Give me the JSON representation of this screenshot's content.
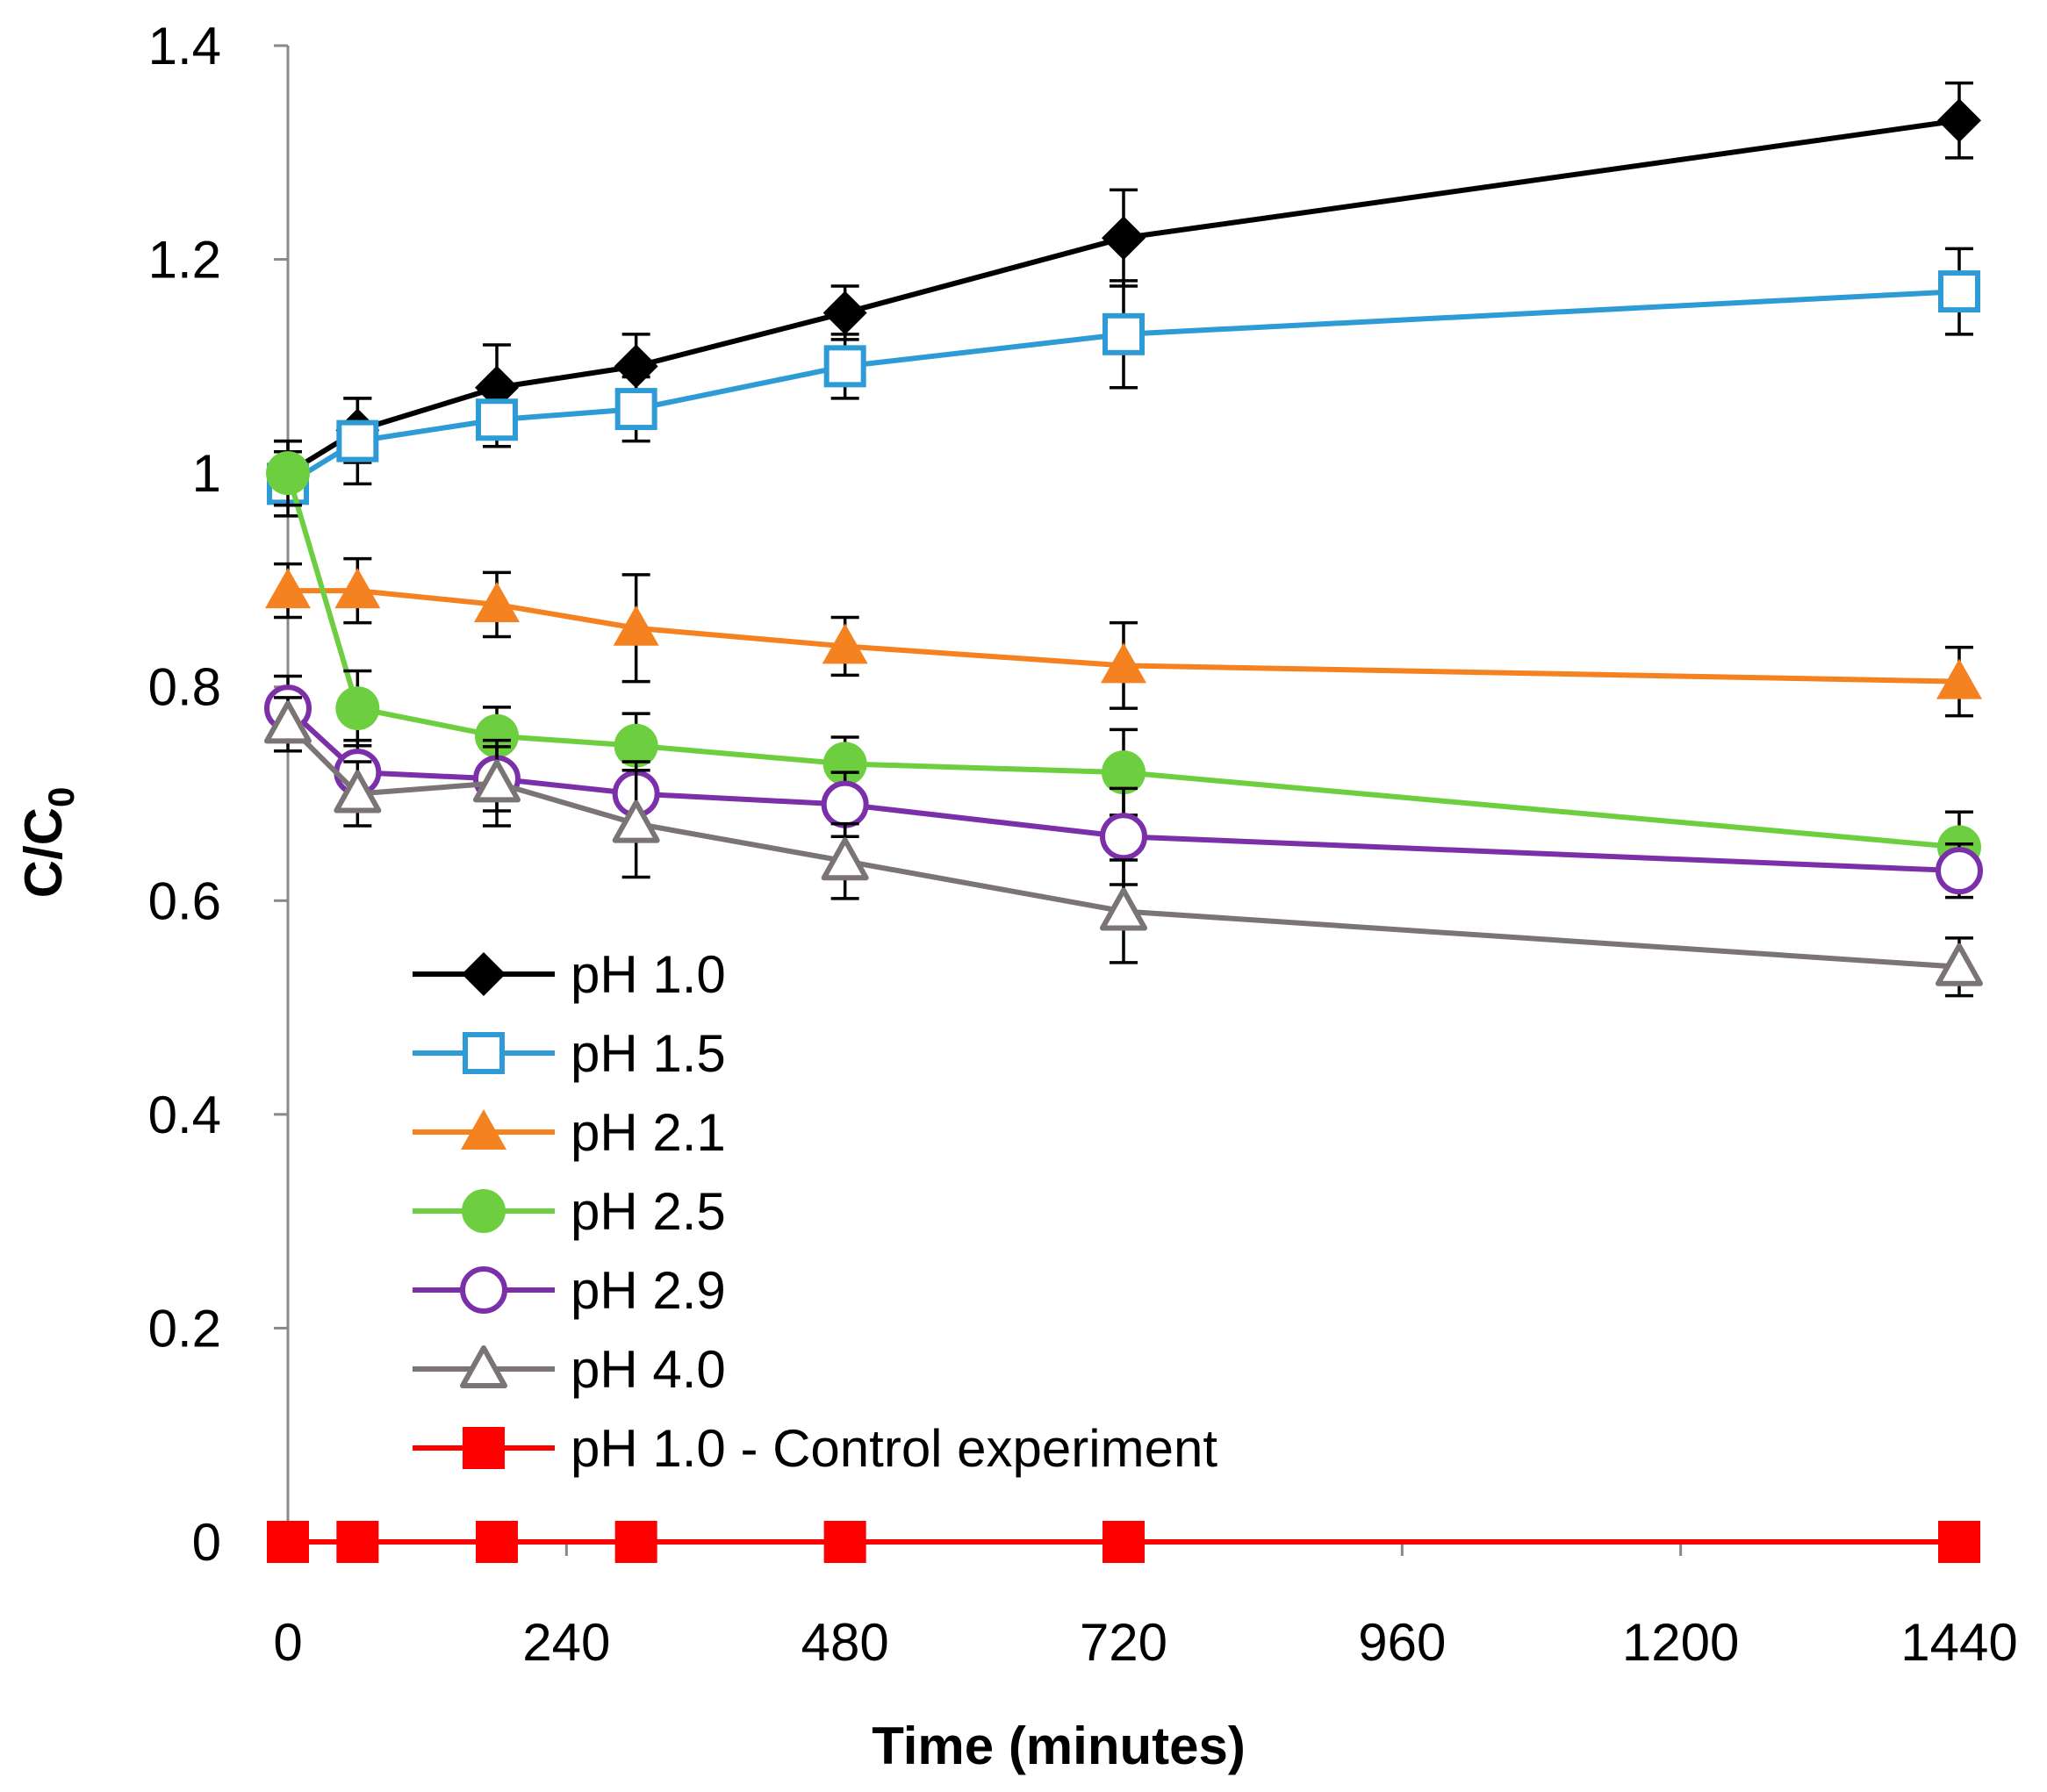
{
  "chart_data": {
    "type": "line",
    "title": "",
    "xlabel": "Time (minutes)",
    "ylabel": "C/C",
    "ylabel_subscript": "0",
    "xlim": [
      0,
      1440
    ],
    "ylim": [
      0,
      1.4
    ],
    "xticks": [
      0,
      240,
      480,
      720,
      960,
      1200,
      1440
    ],
    "yticks": [
      0,
      0.2,
      0.4,
      0.6,
      0.8,
      1,
      1.2,
      1.4
    ],
    "xtick_labels": [
      "0",
      "240",
      "480",
      "720",
      "960",
      "1200",
      "1440"
    ],
    "ytick_labels": [
      "0",
      "0.2",
      "0.4",
      "0.6",
      "0.8",
      "1",
      "1.2",
      "1.4"
    ],
    "grid": false,
    "legend_position": "left-center",
    "series": [
      {
        "name": "pH 1.0",
        "color": "#000000",
        "marker": "diamond-filled",
        "x": [
          0,
          60,
          180,
          300,
          480,
          720,
          1440
        ],
        "y": [
          1.0,
          1.04,
          1.08,
          1.1,
          1.15,
          1.22,
          1.33
        ],
        "err": [
          0.03,
          0.03,
          0.04,
          0.03,
          0.025,
          0.045,
          0.035
        ]
      },
      {
        "name": "pH 1.5",
        "color": "#2e9bd6",
        "marker": "square-open",
        "x": [
          0,
          60,
          180,
          300,
          480,
          720,
          1440
        ],
        "y": [
          0.99,
          1.03,
          1.05,
          1.06,
          1.1,
          1.13,
          1.17
        ],
        "err": [
          0.03,
          0.04,
          0.025,
          0.03,
          0.03,
          0.05,
          0.04
        ]
      },
      {
        "name": "pH 2.1",
        "color": "#f58220",
        "marker": "triangle-filled",
        "x": [
          0,
          60,
          180,
          300,
          480,
          720,
          1440
        ],
        "y": [
          0.89,
          0.89,
          0.877,
          0.855,
          0.838,
          0.82,
          0.805
        ],
        "err": [
          0.025,
          0.03,
          0.03,
          0.05,
          0.027,
          0.04,
          0.032
        ]
      },
      {
        "name": "pH 2.5",
        "color": "#6dcf3f",
        "marker": "circle-filled",
        "x": [
          0,
          60,
          180,
          300,
          480,
          720,
          1440
        ],
        "y": [
          1.0,
          0.78,
          0.754,
          0.745,
          0.728,
          0.72,
          0.65
        ],
        "err": [
          0.03,
          0.035,
          0.027,
          0.03,
          0.025,
          0.04,
          0.033
        ]
      },
      {
        "name": "pH 2.9",
        "color": "#7b2fa8",
        "marker": "circle-open",
        "x": [
          0,
          60,
          180,
          300,
          480,
          720,
          1440
        ],
        "y": [
          0.78,
          0.72,
          0.714,
          0.7,
          0.69,
          0.66,
          0.628
        ],
        "err": [
          0.03,
          0.03,
          0.03,
          0.03,
          0.03,
          0.045,
          0.025
        ]
      },
      {
        "name": "pH 4.0",
        "color": "#7a7474",
        "marker": "triangle-open",
        "x": [
          0,
          60,
          180,
          300,
          480,
          720,
          1440
        ],
        "y": [
          0.765,
          0.7,
          0.71,
          0.672,
          0.637,
          0.59,
          0.538
        ],
        "err": [
          0.025,
          0.03,
          0.04,
          0.05,
          0.035,
          0.048,
          0.027
        ]
      },
      {
        "name": "pH 1.0  - Control experiment",
        "color": "#ff0000",
        "marker": "square-filled",
        "x": [
          0,
          60,
          180,
          300,
          480,
          720,
          1440
        ],
        "y": [
          0,
          0,
          0,
          0,
          0,
          0,
          0
        ],
        "err": [
          0,
          0,
          0,
          0,
          0,
          0,
          0
        ]
      }
    ]
  }
}
